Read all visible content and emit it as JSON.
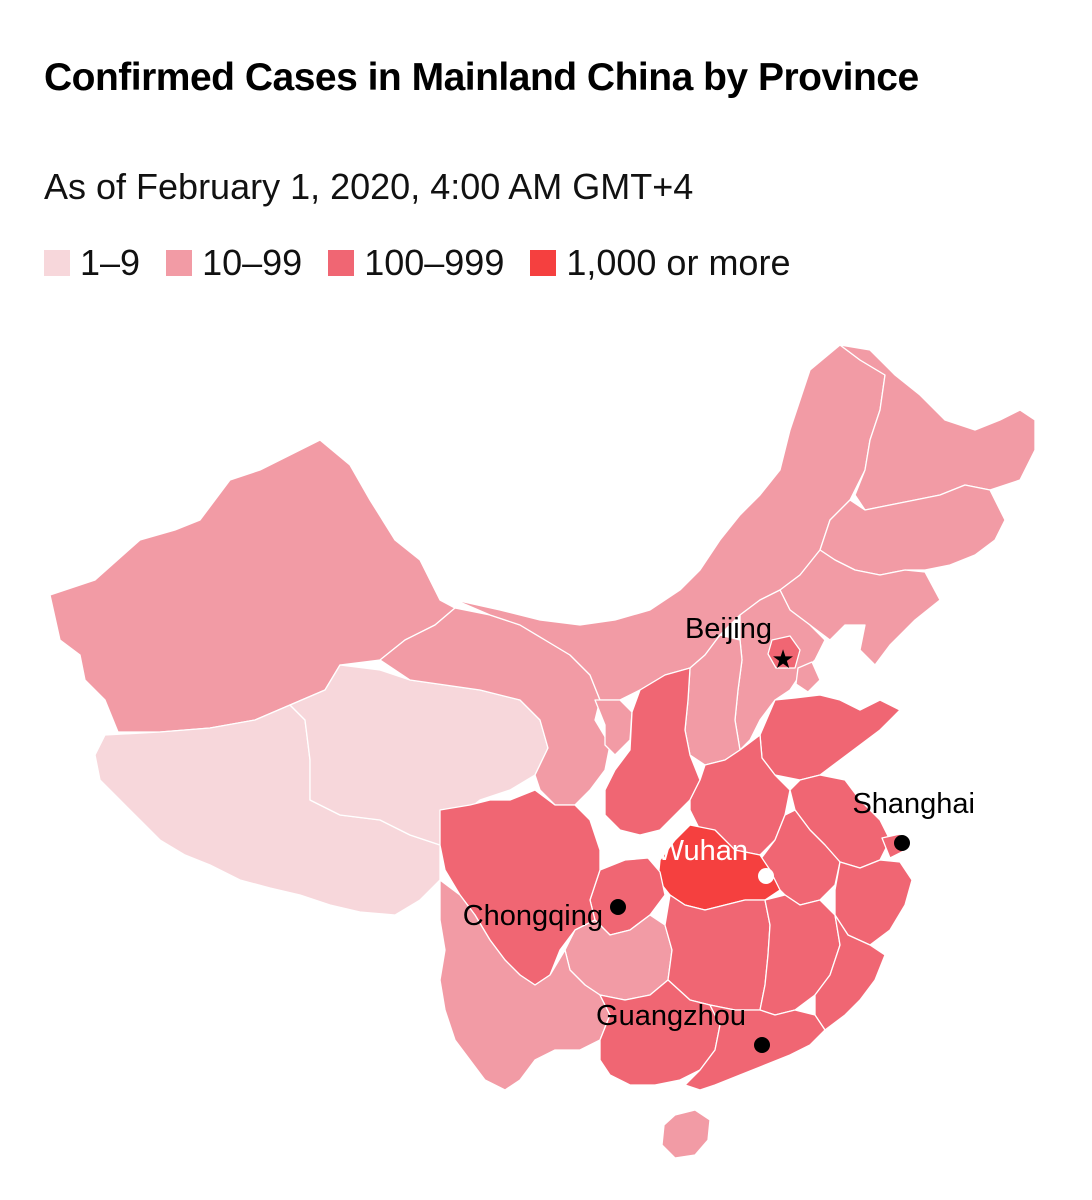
{
  "title": "Confirmed Cases in Mainland China by Province",
  "subtitle": "As of February 1, 2020, 4:00 AM GMT+4",
  "legend": [
    {
      "label": "1–9",
      "color": "#f7d7db"
    },
    {
      "label": "10–99",
      "color": "#f29ba5"
    },
    {
      "label": "100–999",
      "color": "#f06673"
    },
    {
      "label": "1,000 or more",
      "color": "#f5403f"
    }
  ],
  "cities": [
    {
      "name": "Beijing",
      "marker": "star"
    },
    {
      "name": "Shanghai",
      "marker": "dot"
    },
    {
      "name": "Wuhan",
      "marker": "white-dot"
    },
    {
      "name": "Chongqing",
      "marker": "dot"
    },
    {
      "name": "Guangzhou",
      "marker": "dot"
    }
  ],
  "provinces": [
    {
      "name": "Heilongjiang",
      "bin": "10–99"
    },
    {
      "name": "Jilin",
      "bin": "10–99"
    },
    {
      "name": "Liaoning",
      "bin": "10–99"
    },
    {
      "name": "Inner Mongolia",
      "bin": "10–99"
    },
    {
      "name": "Xinjiang",
      "bin": "10–99"
    },
    {
      "name": "Tibet",
      "bin": "1–9"
    },
    {
      "name": "Qinghai",
      "bin": "1–9"
    },
    {
      "name": "Gansu",
      "bin": "10–99"
    },
    {
      "name": "Ningxia",
      "bin": "10–99"
    },
    {
      "name": "Shaanxi",
      "bin": "100–999"
    },
    {
      "name": "Shanxi",
      "bin": "10–99"
    },
    {
      "name": "Hebei",
      "bin": "10–99"
    },
    {
      "name": "Beijing",
      "bin": "100–999"
    },
    {
      "name": "Tianjin",
      "bin": "10–99"
    },
    {
      "name": "Shandong",
      "bin": "100–999"
    },
    {
      "name": "Henan",
      "bin": "100–999"
    },
    {
      "name": "Jiangsu",
      "bin": "100–999"
    },
    {
      "name": "Anhui",
      "bin": "100–999"
    },
    {
      "name": "Shanghai",
      "bin": "100–999"
    },
    {
      "name": "Zhejiang",
      "bin": "100–999"
    },
    {
      "name": "Hubei",
      "bin": "1,000 or more"
    },
    {
      "name": "Sichuan",
      "bin": "100–999"
    },
    {
      "name": "Chongqing",
      "bin": "100–999"
    },
    {
      "name": "Guizhou",
      "bin": "10–99"
    },
    {
      "name": "Yunnan",
      "bin": "10–99"
    },
    {
      "name": "Hunan",
      "bin": "100–999"
    },
    {
      "name": "Jiangxi",
      "bin": "100–999"
    },
    {
      "name": "Fujian",
      "bin": "100–999"
    },
    {
      "name": "Guangxi",
      "bin": "100–999"
    },
    {
      "name": "Guangdong",
      "bin": "100–999"
    },
    {
      "name": "Hainan",
      "bin": "10–99"
    }
  ]
}
